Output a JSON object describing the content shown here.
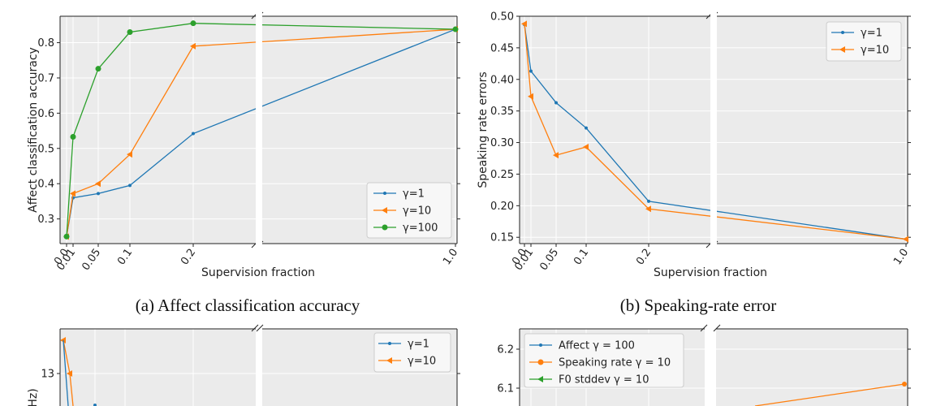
{
  "chart_data": [
    {
      "type": "line",
      "caption": "(a) Affect classification accuracy",
      "xlabel": "Supervision fraction",
      "ylabel": "Affect classification accuracy",
      "x_tick_labels": [
        "0.0",
        "0.01",
        "0.05",
        "0.1",
        "0.2",
        "1.0"
      ],
      "y_ticks": [
        "0.3",
        "0.4",
        "0.5",
        "0.6",
        "0.7",
        "0.8"
      ],
      "ylim": [
        0.23,
        0.875
      ],
      "x_axis_break": true,
      "grid": true,
      "legend": "lower-right",
      "series": [
        {
          "name": "γ=1",
          "color": "#1f77b4",
          "marker": "dot",
          "x": [
            0.0,
            0.01,
            0.05,
            0.1,
            0.2,
            1.0
          ],
          "values": [
            0.25,
            0.36,
            0.372,
            0.395,
            0.542,
            0.838
          ]
        },
        {
          "name": "γ=10",
          "color": "#ff7f0e",
          "marker": "triangle-left",
          "x": [
            0.0,
            0.01,
            0.05,
            0.1,
            0.2,
            1.0
          ],
          "values": [
            0.25,
            0.372,
            0.4,
            0.483,
            0.79,
            0.838
          ]
        },
        {
          "name": "γ=100",
          "color": "#2ca02c",
          "marker": "circle",
          "x": [
            0.0,
            0.01,
            0.05,
            0.1,
            0.2,
            1.0
          ],
          "values": [
            0.25,
            0.533,
            0.726,
            0.83,
            0.855,
            0.838
          ]
        }
      ]
    },
    {
      "type": "line",
      "caption": "(b) Speaking-rate error",
      "xlabel": "Supervision fraction",
      "ylabel": "Speaking rate errors",
      "x_tick_labels": [
        "0.0",
        "0.01",
        "0.05",
        "0.1",
        "0.2",
        "1.0"
      ],
      "y_ticks": [
        "0.15",
        "0.20",
        "0.25",
        "0.30",
        "0.35",
        "0.40",
        "0.45",
        "0.50"
      ],
      "ylim": [
        0.14,
        0.5
      ],
      "x_axis_break": true,
      "grid": true,
      "legend": "top-right",
      "series": [
        {
          "name": "γ=1",
          "color": "#1f77b4",
          "marker": "dot",
          "x": [
            0.0,
            0.01,
            0.05,
            0.1,
            0.2,
            1.0
          ],
          "values": [
            0.487,
            0.413,
            0.363,
            0.323,
            0.207,
            0.147
          ]
        },
        {
          "name": "γ=10",
          "color": "#ff7f0e",
          "marker": "triangle-left",
          "x": [
            0.0,
            0.01,
            0.05,
            0.1,
            0.2,
            1.0
          ],
          "values": [
            0.488,
            0.373,
            0.28,
            0.293,
            0.195,
            0.147
          ]
        }
      ]
    },
    {
      "type": "line",
      "ylabel_partial": "Hz)",
      "y_ticks": [
        "13"
      ],
      "x_axis_break": true,
      "grid": true,
      "legend": "top-right",
      "series": [
        {
          "name": "γ=1",
          "color": "#1f77b4",
          "marker": "dot"
        },
        {
          "name": "γ=10",
          "color": "#ff7f0e",
          "marker": "triangle-left"
        }
      ]
    },
    {
      "type": "line",
      "y_ticks": [
        "6.1",
        "6.2"
      ],
      "x_axis_break": true,
      "grid": true,
      "legend": "top-left",
      "series": [
        {
          "name": "Affect γ = 100",
          "color": "#1f77b4",
          "marker": "dot"
        },
        {
          "name": "Speaking rate γ = 10",
          "color": "#ff7f0e",
          "marker": "circle"
        },
        {
          "name": "F0 stddev γ = 10",
          "color": "#2ca02c",
          "marker": "triangle-left"
        }
      ]
    }
  ]
}
